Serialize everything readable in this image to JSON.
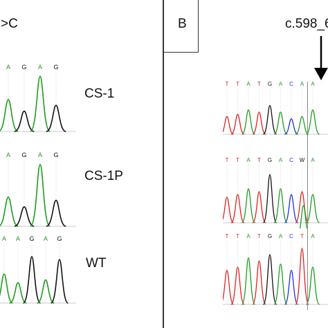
{
  "panel_a": {
    "title_fragment": ">C",
    "traces": [
      {
        "label": "CS-1",
        "bases": [
          "A",
          "G",
          "A",
          "G"
        ]
      },
      {
        "label": "CS-1P",
        "bases": [
          "A",
          "G",
          "A",
          "G"
        ]
      },
      {
        "label": "WT",
        "bases": [
          "A",
          "A",
          "G",
          "A",
          "G"
        ]
      }
    ]
  },
  "panel_b": {
    "panel_letter": "B",
    "mutation_label": "c.598_6",
    "traces": [
      {
        "bases": [
          "T",
          "T",
          "A",
          "T",
          "G",
          "A",
          "C",
          "A",
          "A"
        ]
      },
      {
        "bases": [
          "T",
          "T",
          "A",
          "T",
          "G",
          "A",
          "C",
          "W",
          "A"
        ]
      },
      {
        "bases": [
          "T",
          "T",
          "A",
          "T",
          "G",
          "A",
          "C",
          "T",
          "A"
        ]
      }
    ]
  },
  "colors": {
    "A": "#1a9e1a",
    "T": "#e02020",
    "G": "#111111",
    "C": "#2030d0",
    "W": "#111111"
  }
}
